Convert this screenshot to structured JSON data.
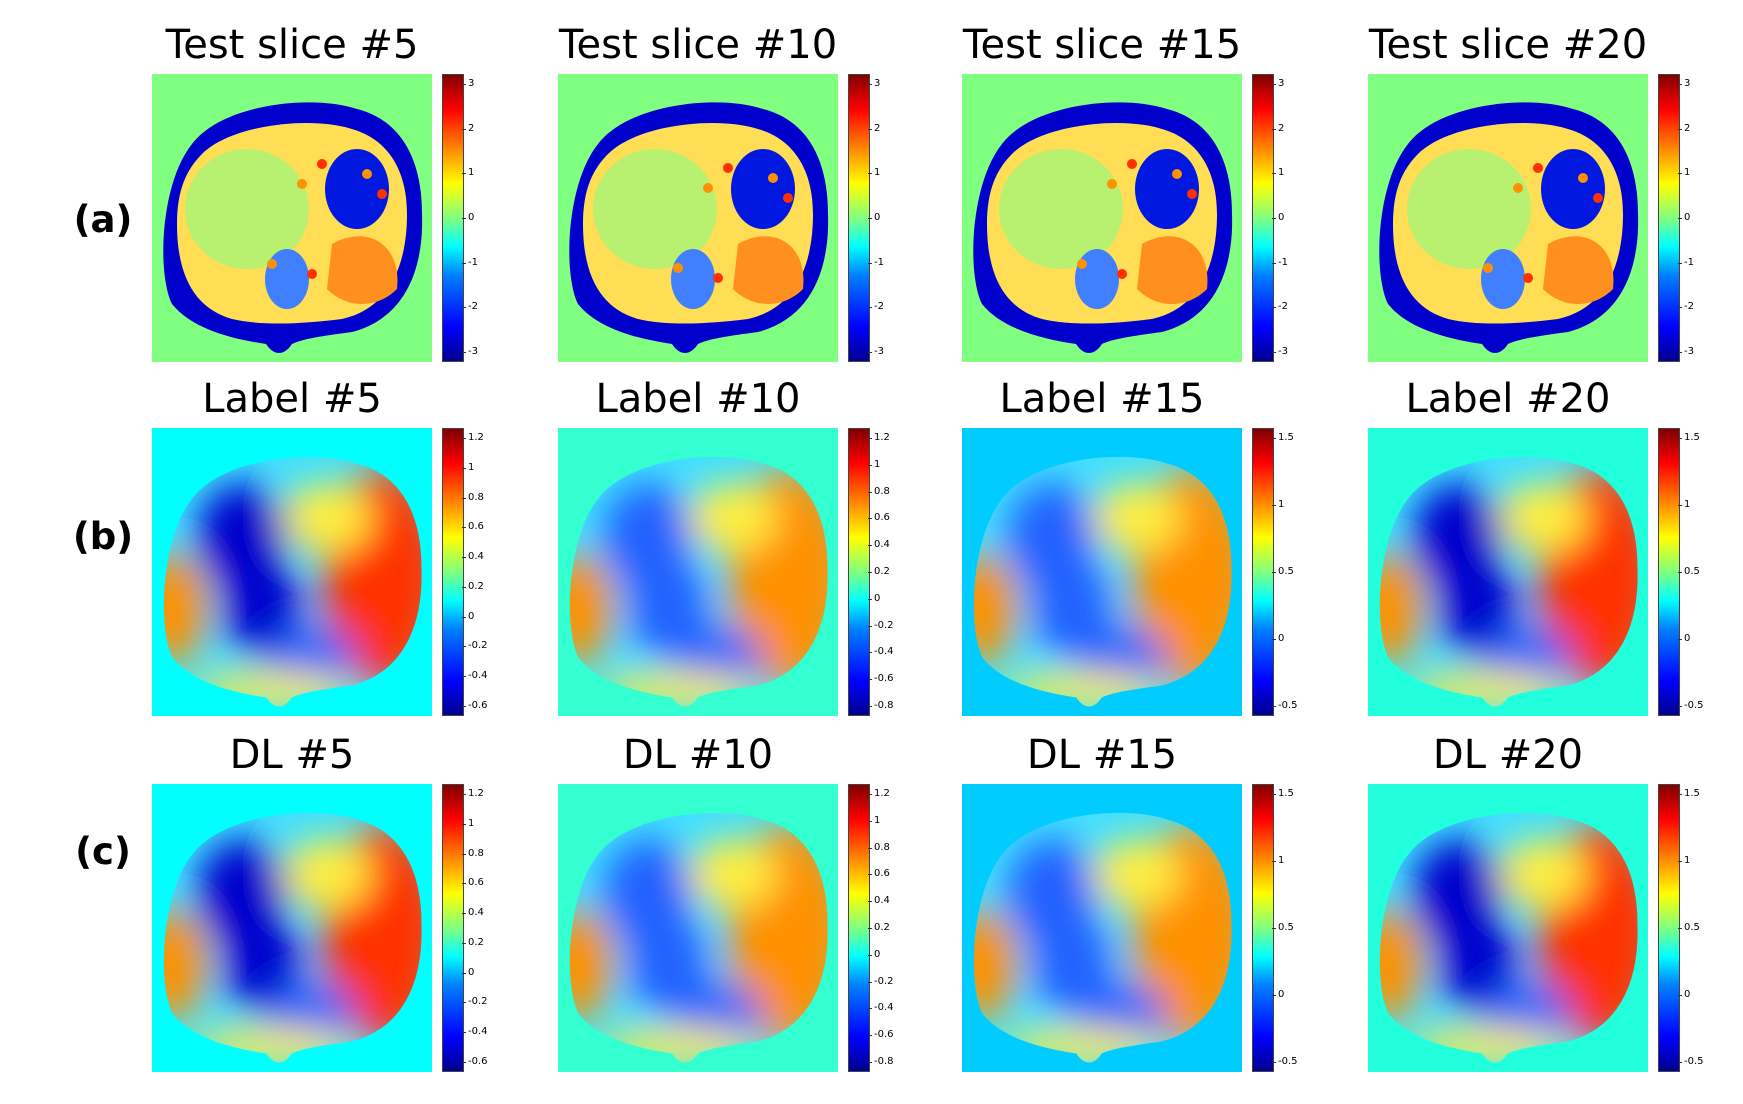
{
  "row_labels": [
    "(a)",
    "(b)",
    "(c)"
  ],
  "rows": [
    {
      "kind": "phase",
      "panels": [
        {
          "title": "Test slice #5",
          "ticks": [
            "3",
            "2",
            "1",
            "0",
            "-1",
            "-2",
            "-3"
          ]
        },
        {
          "title": "Test slice #10",
          "ticks": [
            "3",
            "2",
            "1",
            "0",
            "-1",
            "-2",
            "-3"
          ]
        },
        {
          "title": "Test slice #15",
          "ticks": [
            "3",
            "2",
            "1",
            "0",
            "-1",
            "-2",
            "-3"
          ]
        },
        {
          "title": "Test slice #20",
          "ticks": [
            "3",
            "2",
            "1",
            "0",
            "-1",
            "-2",
            "-3"
          ]
        }
      ]
    },
    {
      "kind": "smooth",
      "panels": [
        {
          "title": "Label #5",
          "ticks": [
            "1.2",
            "1",
            "0.8",
            "0.6",
            "0.4",
            "0.2",
            "0",
            "-0.2",
            "-0.4",
            "-0.6"
          ],
          "background": "#00ffff"
        },
        {
          "title": "Label #10",
          "ticks": [
            "1.2",
            "1",
            "0.8",
            "0.6",
            "0.4",
            "0.2",
            "0",
            "-0.2",
            "-0.4",
            "-0.6",
            "-0.8"
          ],
          "background": "#33ffd0"
        },
        {
          "title": "Label #15",
          "ticks": [
            "1.5",
            "1",
            "0.5",
            "0",
            "-0.5"
          ],
          "background": "#00ccff"
        },
        {
          "title": "Label #20",
          "ticks": [
            "1.5",
            "1",
            "0.5",
            "0",
            "-0.5"
          ],
          "background": "#22ffdd"
        }
      ]
    },
    {
      "kind": "smooth",
      "panels": [
        {
          "title": "DL #5",
          "ticks": [
            "1.2",
            "1",
            "0.8",
            "0.6",
            "0.4",
            "0.2",
            "0",
            "-0.2",
            "-0.4",
            "-0.6"
          ],
          "background": "#00ffff"
        },
        {
          "title": "DL #10",
          "ticks": [
            "1.2",
            "1",
            "0.8",
            "0.6",
            "0.4",
            "0.2",
            "0",
            "-0.2",
            "-0.4",
            "-0.6",
            "-0.8"
          ],
          "background": "#33ffd0"
        },
        {
          "title": "DL #15",
          "ticks": [
            "1.5",
            "1",
            "0.5",
            "0",
            "-0.5"
          ],
          "background": "#00ccff"
        },
        {
          "title": "DL #20",
          "ticks": [
            "1.5",
            "1",
            "0.5",
            "0",
            "-0.5"
          ],
          "background": "#22ffdd"
        }
      ]
    }
  ],
  "colors": {
    "phase_background": "#80ff80",
    "deep_blue": "#0000cc",
    "blue": "#2060ff",
    "cyan": "#40e0ff",
    "yellow": "#ffee40",
    "orange": "#ff9000",
    "red": "#ff3000"
  }
}
